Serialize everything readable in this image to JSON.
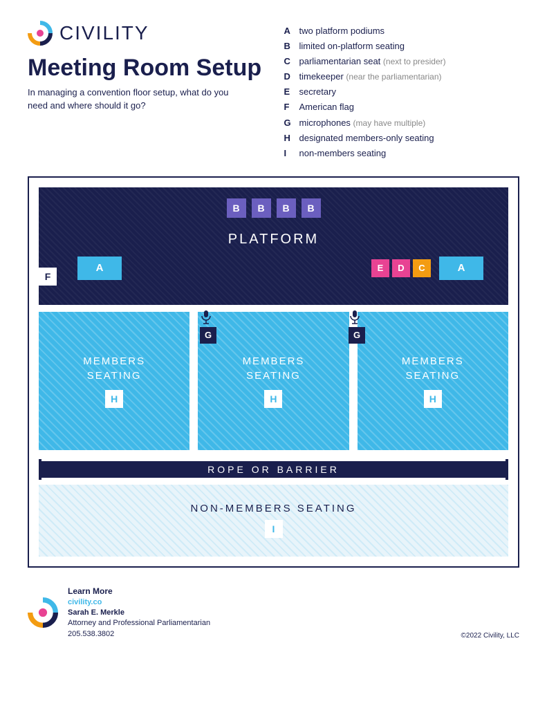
{
  "brand": "CIVILITY",
  "title": "Meeting Room Setup",
  "subtitle": "In managing a convention floor setup, what do you need and where should it go?",
  "legend": [
    {
      "k": "A",
      "t": "two platform podiums",
      "n": ""
    },
    {
      "k": "B",
      "t": "limited on-platform seating",
      "n": ""
    },
    {
      "k": "C",
      "t": "parliamentarian seat",
      "n": "(next to presider)"
    },
    {
      "k": "D",
      "t": "timekeeper",
      "n": "(near the parliamentarian)"
    },
    {
      "k": "E",
      "t": "secretary",
      "n": ""
    },
    {
      "k": "F",
      "t": "American flag",
      "n": ""
    },
    {
      "k": "G",
      "t": "microphones",
      "n": "(may have multiple)"
    },
    {
      "k": "H",
      "t": "designated members-only seating",
      "n": ""
    },
    {
      "k": "I",
      "t": "non-members seating",
      "n": ""
    }
  ],
  "platform": {
    "label": "PLATFORM",
    "b_count": 4,
    "b": "B",
    "a": "A",
    "f": "F",
    "e": "E",
    "d": "D",
    "c": "C"
  },
  "mic": {
    "g": "G"
  },
  "members": {
    "label": "MEMBERS\nSEATING",
    "h": "H",
    "cols": 3
  },
  "barrier": "ROPE OR BARRIER",
  "nonmembers": {
    "label": "NON-MEMBERS SEATING",
    "i": "I"
  },
  "footer": {
    "learn": "Learn More",
    "url": "civility.co",
    "name": "Sarah E. Merkle",
    "role": "Attorney and Professional Parliamentarian",
    "phone": "205.538.3802",
    "copyright": "©2022 Civility, LLC"
  },
  "colors": {
    "navy": "#1a1f4d",
    "cyan": "#3fb8e8",
    "purple": "#6b5fbf",
    "pink": "#e84393",
    "orange": "#f39c12",
    "pale": "#e8f4fa"
  }
}
